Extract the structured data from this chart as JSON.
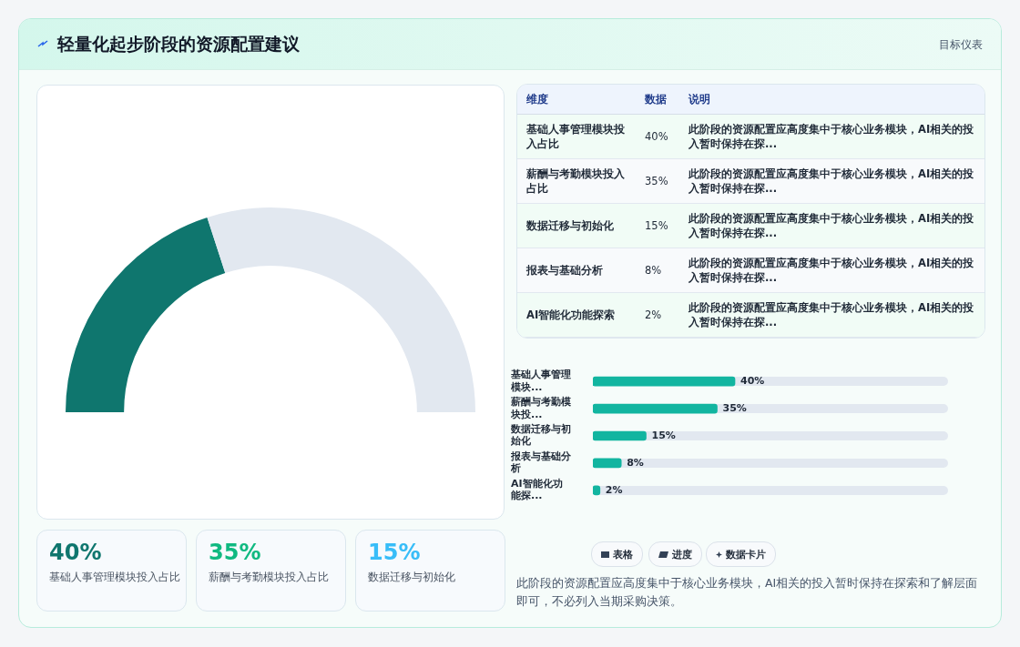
{
  "chart_data": [
    {
      "type": "other",
      "title": "轻量化起步阶段的资源配置建议",
      "subtitle": "目标仪表"
    },
    {
      "type": "donut",
      "categories": [
        null,
        null
      ],
      "values": [
        40,
        60
      ],
      "colors": [
        "#0f766e",
        "#e2e8f0"
      ]
    },
    {
      "type": "other",
      "categories": [
        "基础人事管理模块投入占比",
        "薪酬与考勤模块投入占比",
        "数据迁移与初始化",
        "报表与基础分析",
        "AI智能化功能探索"
      ],
      "value_labels": [
        "40%",
        "35%",
        "15%",
        "8%",
        "2%"
      ],
      "annotations": [
        "维度",
        "数据",
        "说明",
        "此阶段的资源配置应高度集中于核心业务模块，AI相关的投入暂时保持在探...",
        "此阶段的资源配置应高度集中于核心业务模块，AI相关的投入暂时保持在探...",
        "此阶段的资源配置应高度集中于核心业务模块，AI相关的投入暂时保持在探...",
        "此阶段的资源配置应高度集中于核心业务模块，AI相关的投入暂时保持在探...",
        "此阶段的资源配置应高度集中于核心业务模块，AI相关的投入暂时保持在探..."
      ]
    },
    {
      "type": "bar",
      "orientation": "horizontal",
      "categories": [
        "基础人事管理模块...",
        "薪酬与考勤模块投...",
        "数据迁移与初始化",
        "报表与基础分析",
        "AI智能化功能探..."
      ],
      "values": [
        40,
        35,
        15,
        8,
        2
      ],
      "color": "#12b5a0",
      "value_labels": [
        "40%",
        "35%",
        "15%",
        "8%",
        "2%"
      ],
      "xlim": [
        0,
        100
      ],
      "tick_labels": "y",
      "annotations": [
        "表格",
        "进度",
        "数据卡片",
        "此阶段的资源配置应高度集中于核心业务模块，AI相关的投入暂时保持在探索和了解层面即可，不必列入当期采购决策。"
      ]
    },
    {
      "type": "other",
      "categories": [
        "基础人事管理模块投入占比",
        "薪酬与考勤模块投入占比",
        "数据迁移与初始化"
      ],
      "value_labels": [
        "40%",
        "35%",
        "15%"
      ]
    }
  ]
}
